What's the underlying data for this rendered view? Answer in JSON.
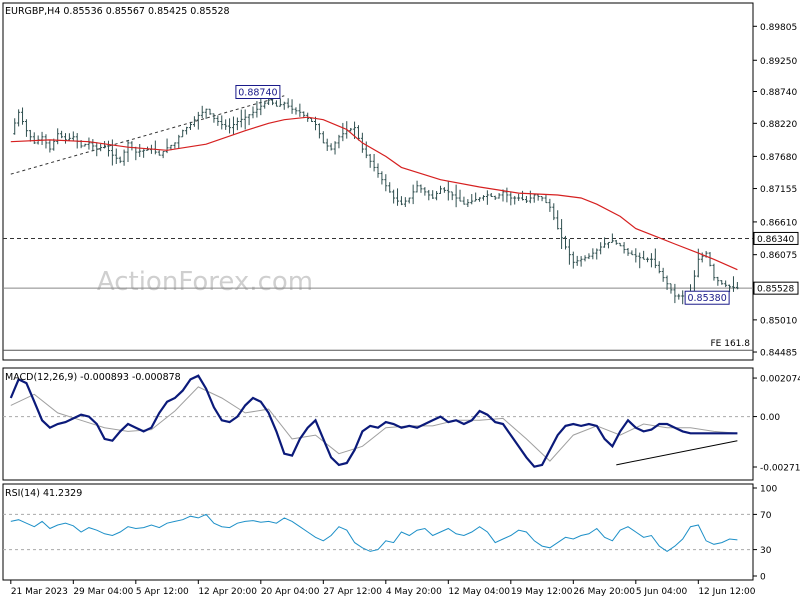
{
  "colors": {
    "background": "#ffffff",
    "frame": "#000000",
    "candle": "#2f4f4f",
    "ma": "#d62020",
    "macd_main": "#0b1a7a",
    "macd_signal": "#a0a0a0",
    "rsi": "#1e90c8",
    "dashed": "#333333",
    "watermark": "#cfcfcf"
  },
  "header": {
    "symbol_line": "EURGBP,H4  0.85536 0.85567 0.85425 0.85528",
    "watermark": "ActionForex.com"
  },
  "chart_data": [
    {
      "type": "candlestick",
      "title": "EURGBP,H4  0.85536 0.85567 0.85425 0.85528",
      "ylim": [
        0.8442,
        0.9012
      ],
      "y_ticks": [
        "0.89805",
        "0.89250",
        "0.88740",
        "0.88220",
        "0.87680",
        "0.87155",
        "0.86610",
        "0.86075",
        "0.85528",
        "0.85010",
        "0.84485"
      ],
      "y_tick_values": [
        0.89805,
        0.8925,
        0.8874,
        0.8822,
        0.8768,
        0.87155,
        0.8661,
        0.86075,
        0.85528,
        0.8501,
        0.84485
      ],
      "annotations": [
        {
          "text": "0.88740",
          "x": 63,
          "y": 0.8874
        },
        {
          "text": "0.85380",
          "x": 178,
          "y": 0.8538
        },
        {
          "text": "FE 161.8",
          "y": 0.8458
        }
      ],
      "level_labels": [
        "0.86340",
        "0.85528"
      ],
      "levels": [
        {
          "value": 0.8634,
          "style": "dashed"
        },
        {
          "value": 0.85528,
          "style": "solid"
        }
      ],
      "trend_line": {
        "x": [
          0,
          70
        ],
        "y": [
          0.8739,
          0.8867
        ]
      },
      "close_trace": {
        "x": [
          0,
          2,
          4,
          6,
          8,
          10,
          12,
          14,
          16,
          18,
          20,
          22,
          24,
          26,
          28,
          30,
          32,
          34,
          36,
          38,
          40,
          42,
          44,
          46,
          48,
          50,
          52,
          54,
          56,
          58,
          60,
          62,
          64,
          66,
          68,
          70,
          72,
          74,
          76,
          78,
          80,
          82,
          84,
          86,
          88,
          90,
          92,
          94,
          96,
          98,
          100,
          102,
          104,
          106,
          108,
          110,
          112,
          114,
          116,
          118,
          120,
          122,
          124,
          126,
          128,
          130,
          132,
          134,
          136,
          138,
          140,
          142,
          144,
          146,
          148,
          150,
          152,
          154,
          156,
          158,
          160,
          162,
          164,
          166,
          168,
          170,
          172,
          174,
          176,
          178,
          180,
          182,
          184,
          186
        ],
        "y": [
          0.8805,
          0.884,
          0.881,
          0.879,
          0.88,
          0.878,
          0.8805,
          0.8795,
          0.88,
          0.8785,
          0.879,
          0.878,
          0.8785,
          0.877,
          0.876,
          0.879,
          0.8775,
          0.8778,
          0.878,
          0.877,
          0.8782,
          0.879,
          0.881,
          0.882,
          0.8835,
          0.8845,
          0.883,
          0.882,
          0.8815,
          0.8825,
          0.8832,
          0.884,
          0.885,
          0.886,
          0.885,
          0.8855,
          0.8845,
          0.884,
          0.883,
          0.882,
          0.879,
          0.878,
          0.88,
          0.881,
          0.8815,
          0.878,
          0.876,
          0.874,
          0.872,
          0.87,
          0.869,
          0.87,
          0.872,
          0.871,
          0.87,
          0.8715,
          0.871,
          0.87,
          0.869,
          0.8695,
          0.87,
          0.8705,
          0.87,
          0.871,
          0.87,
          0.87,
          0.8695,
          0.8705,
          0.87,
          0.8685,
          0.865,
          0.862,
          0.8595,
          0.86,
          0.8605,
          0.8615,
          0.8625,
          0.863,
          0.8622,
          0.861,
          0.8605,
          0.86,
          0.86,
          0.858,
          0.856,
          0.854,
          0.854,
          0.8545,
          0.86,
          0.861,
          0.857,
          0.856,
          0.8555,
          0.8553
        ]
      },
      "ma_trace": {
        "x": [
          0,
          10,
          20,
          30,
          40,
          50,
          60,
          66,
          70,
          76,
          80,
          86,
          90,
          96,
          100,
          110,
          120,
          130,
          140,
          146,
          150,
          156,
          160,
          166,
          170,
          176,
          180,
          186
        ],
        "y": [
          0.8792,
          0.8795,
          0.8792,
          0.8783,
          0.8778,
          0.8788,
          0.881,
          0.8822,
          0.8828,
          0.8832,
          0.8828,
          0.8812,
          0.879,
          0.8768,
          0.875,
          0.873,
          0.8718,
          0.8708,
          0.8705,
          0.87,
          0.869,
          0.867,
          0.865,
          0.8635,
          0.8625,
          0.861,
          0.86,
          0.8583
        ]
      }
    },
    {
      "type": "line",
      "title": "MACD(12,26,9) -0.000893 -0.000878",
      "ylim": [
        -0.0032,
        0.0024
      ],
      "y_ticks": [
        "0.002074",
        "0.00",
        "-0.002716"
      ],
      "y_tick_values": [
        0.002074,
        0.0,
        -0.002716
      ],
      "zero_line": 0.0,
      "trend_line": {
        "x": [
          155,
          186
        ],
        "y": [
          -0.0026,
          -0.0013
        ]
      },
      "series": [
        {
          "x": [
            0,
            2,
            4,
            6,
            8,
            10,
            12,
            14,
            16,
            18,
            20,
            22,
            24,
            26,
            28,
            30,
            32,
            34,
            36,
            38,
            40,
            42,
            44,
            46,
            48,
            50,
            52,
            54,
            56,
            58,
            60,
            62,
            64,
            66,
            68,
            70,
            72,
            74,
            76,
            78,
            80,
            82,
            84,
            86,
            88,
            90,
            92,
            94,
            96,
            98,
            100,
            102,
            104,
            106,
            108,
            110,
            112,
            114,
            116,
            118,
            120,
            122,
            124,
            126,
            128,
            130,
            132,
            134,
            136,
            138,
            140,
            142,
            144,
            146,
            148,
            150,
            152,
            154,
            156,
            158,
            160,
            162,
            164,
            166,
            168,
            170,
            172,
            174,
            176,
            178,
            180,
            182,
            184,
            186
          ],
          "values": [
            0.001,
            0.002,
            0.0018,
            0.0008,
            -0.0002,
            -0.0006,
            -0.0004,
            -0.0003,
            -0.0001,
            0.0001,
            0.0,
            -0.0004,
            -0.0012,
            -0.0013,
            -0.0008,
            -0.0004,
            -0.0006,
            -0.0008,
            -0.0006,
            0.0002,
            0.0008,
            0.001,
            0.0014,
            0.002,
            0.0022,
            0.0015,
            0.0005,
            -0.0002,
            -0.0003,
            0.0,
            0.0006,
            0.001,
            0.0008,
            0.0002,
            -0.0008,
            -0.002,
            -0.0021,
            -0.0012,
            -0.0006,
            -0.0002,
            -0.0012,
            -0.0022,
            -0.0026,
            -0.0025,
            -0.0018,
            -0.0008,
            -0.0005,
            -0.0006,
            -0.0003,
            -0.0004,
            -0.0006,
            -0.0005,
            -0.0006,
            -0.0004,
            -0.0002,
            0.0,
            -0.0003,
            -0.0002,
            -0.0004,
            -0.0002,
            0.0003,
            0.0001,
            -0.0003,
            -0.0004,
            -0.001,
            -0.0016,
            -0.0022,
            -0.0027,
            -0.0026,
            -0.0018,
            -0.001,
            -0.0005,
            -0.0004,
            -0.0005,
            -0.0004,
            -0.0005,
            -0.0012,
            -0.0016,
            -0.0008,
            -0.0002,
            -0.0006,
            -0.0008,
            -0.0007,
            -0.0004,
            -0.0004,
            -0.0006,
            -0.0008,
            -0.0009,
            -0.0009,
            -0.0009,
            -0.0009,
            -0.0009,
            -0.0009,
            -0.0009
          ]
        },
        {
          "x": [
            0,
            6,
            12,
            18,
            24,
            30,
            36,
            42,
            48,
            54,
            60,
            66,
            72,
            78,
            84,
            90,
            96,
            102,
            108,
            114,
            120,
            126,
            132,
            138,
            144,
            150,
            156,
            162,
            168,
            174,
            180,
            186
          ],
          "values": [
            0.0006,
            0.0012,
            0.0002,
            -0.0002,
            -0.0006,
            -0.0008,
            -0.0007,
            0.0003,
            0.0016,
            0.001,
            0.0002,
            0.0004,
            -0.0012,
            -0.001,
            -0.002,
            -0.0016,
            -0.0006,
            -0.0005,
            -0.0005,
            -0.0002,
            -0.0002,
            -0.0001,
            -0.0012,
            -0.0024,
            -0.001,
            -0.0005,
            -0.001,
            -0.0004,
            -0.0006,
            -0.0006,
            -0.0008,
            -0.0009
          ]
        }
      ]
    },
    {
      "type": "line",
      "title": "RSI(14) 41.2329",
      "ylim": [
        0,
        100
      ],
      "y_ticks": [
        "100",
        "70",
        "30",
        "0"
      ],
      "y_tick_values": [
        100,
        70,
        30,
        0
      ],
      "levels": [
        70,
        30
      ],
      "series": [
        {
          "x": [
            0,
            2,
            4,
            6,
            8,
            10,
            12,
            14,
            16,
            18,
            20,
            22,
            24,
            26,
            28,
            30,
            32,
            34,
            36,
            38,
            40,
            42,
            44,
            46,
            48,
            50,
            52,
            54,
            56,
            58,
            60,
            62,
            64,
            66,
            68,
            70,
            72,
            74,
            76,
            78,
            80,
            82,
            84,
            86,
            88,
            90,
            92,
            94,
            96,
            98,
            100,
            102,
            104,
            106,
            108,
            110,
            112,
            114,
            116,
            118,
            120,
            122,
            124,
            126,
            128,
            130,
            132,
            134,
            136,
            138,
            140,
            142,
            144,
            146,
            148,
            150,
            152,
            154,
            156,
            158,
            160,
            162,
            164,
            166,
            168,
            170,
            172,
            174,
            176,
            178,
            180,
            182,
            184,
            186
          ],
          "values": [
            62,
            64,
            60,
            56,
            62,
            54,
            58,
            60,
            57,
            50,
            55,
            52,
            48,
            46,
            50,
            56,
            54,
            55,
            58,
            55,
            60,
            62,
            64,
            68,
            66,
            70,
            60,
            56,
            55,
            60,
            62,
            63,
            61,
            62,
            60,
            66,
            62,
            56,
            50,
            44,
            40,
            46,
            56,
            52,
            38,
            32,
            28,
            30,
            40,
            38,
            50,
            46,
            52,
            54,
            46,
            50,
            54,
            48,
            46,
            50,
            56,
            50,
            38,
            42,
            46,
            52,
            50,
            40,
            34,
            32,
            38,
            44,
            42,
            46,
            48,
            54,
            44,
            40,
            52,
            56,
            50,
            44,
            46,
            34,
            28,
            34,
            42,
            56,
            58,
            40,
            36,
            38,
            42,
            41
          ]
        }
      ]
    }
  ],
  "x_axis": {
    "tick_labels": [
      "21 Mar 2023",
      "29 Mar 04:00",
      "5 Apr 12:00",
      "12 Apr 20:00",
      "20 Apr 04:00",
      "27 Apr 12:00",
      "4 May 20:00",
      "12 May 04:00",
      "19 May 12:00",
      "26 May 20:00",
      "5 Jun 04:00",
      "12 Jun 12:00"
    ],
    "tick_positions": [
      0,
      16,
      32,
      48,
      64,
      80,
      96,
      112,
      128,
      144,
      160,
      176
    ],
    "range": [
      -2,
      190
    ]
  },
  "macd_header": "MACD(12,26,9) -0.000893 -0.000878",
  "rsi_header": "RSI(14) 41.2329"
}
